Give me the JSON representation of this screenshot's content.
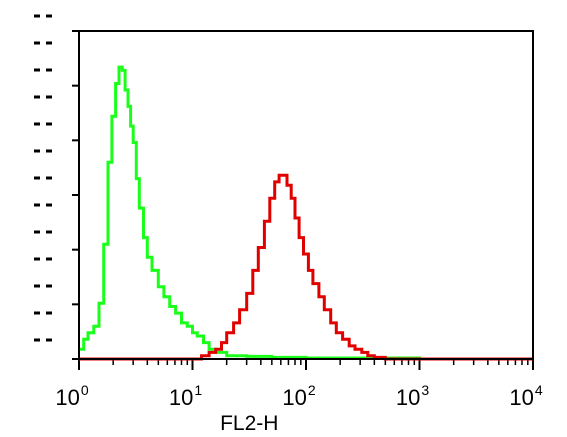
{
  "chart_data": {
    "type": "line",
    "title": "",
    "xlabel": "FL2-H",
    "ylabel": "",
    "x_scale": "log",
    "xlim": [
      1,
      10000
    ],
    "ylim": [
      0,
      100
    ],
    "grid": false,
    "x_ticks": [
      {
        "value": 1,
        "base": "10",
        "exp": "0"
      },
      {
        "value": 10,
        "base": "10",
        "exp": "1"
      },
      {
        "value": 100,
        "base": "10",
        "exp": "2"
      },
      {
        "value": 1000,
        "base": "10",
        "exp": "3"
      },
      {
        "value": 10000,
        "base": "10",
        "exp": "4"
      }
    ],
    "series": [
      {
        "color": "#1aff1a",
        "x": [
          1,
          1.1,
          1.2,
          1.35,
          1.5,
          1.65,
          1.8,
          1.95,
          2.1,
          2.25,
          2.4,
          2.55,
          2.7,
          2.85,
          3.0,
          3.2,
          3.4,
          3.7,
          4.0,
          4.4,
          5.0,
          5.6,
          6.3,
          7.1,
          8.0,
          9.0,
          10,
          11,
          12.5,
          14,
          16,
          20,
          30,
          50,
          100,
          1000,
          10000
        ],
        "y": [
          3,
          6,
          8,
          10,
          17,
          35,
          60,
          74,
          84,
          89,
          88,
          82,
          77,
          71,
          66,
          55,
          46,
          37,
          31,
          27,
          22,
          19,
          16,
          14,
          11,
          10,
          8,
          7,
          5,
          3,
          2,
          1,
          0.8,
          0.5,
          0.3,
          0,
          0
        ]
      },
      {
        "color": "#e00000",
        "x": [
          1,
          10,
          12,
          14,
          16,
          18,
          20,
          23,
          26,
          30,
          34,
          38,
          43,
          48,
          53,
          58,
          63,
          68,
          74,
          80,
          87,
          95,
          105,
          115,
          130,
          145,
          165,
          185,
          210,
          240,
          270,
          310,
          350,
          400,
          500,
          1000,
          10000
        ],
        "y": [
          0,
          0,
          1,
          2,
          3,
          5,
          8,
          11,
          15,
          20,
          27,
          34,
          42,
          49,
          54,
          56,
          56,
          53,
          49,
          43,
          37,
          32,
          27,
          23,
          19,
          15,
          11,
          8,
          6,
          4,
          3,
          2,
          1,
          0.5,
          0,
          0,
          0
        ]
      }
    ]
  }
}
